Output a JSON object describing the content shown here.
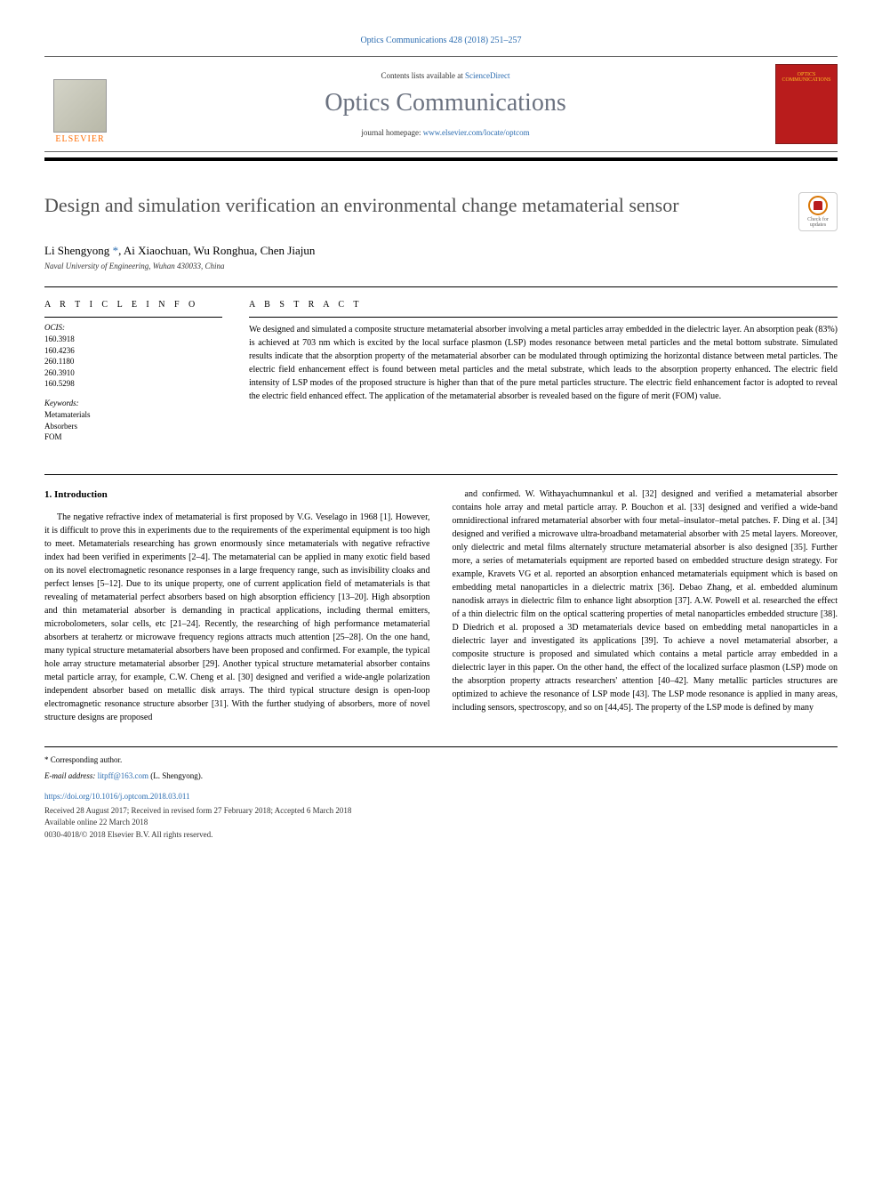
{
  "header": {
    "citation": "Optics Communications 428 (2018) 251–257",
    "contents_prefix": "Contents lists available at ",
    "contents_link": "ScienceDirect",
    "journal_name": "Optics Communications",
    "homepage_prefix": "journal homepage: ",
    "homepage_link": "www.elsevier.com/locate/optcom",
    "publisher": "ELSEVIER",
    "cover_text": "OPTICS COMMUNICATIONS"
  },
  "check_updates": {
    "label": "Check for updates"
  },
  "article": {
    "title": "Design and simulation verification an environmental change metamaterial sensor",
    "authors": "Li Shengyong *, Ai Xiaochuan, Wu Ronghua, Chen Jiajun",
    "affiliation": "Naval University of Engineering, Wuhan 430033, China"
  },
  "info": {
    "heading": "A R T I C L E   I N F O",
    "ocis_label": "OCIS:",
    "ocis": [
      "160.3918",
      "160.4236",
      "260.1180",
      "260.3910",
      "160.5298"
    ],
    "keywords_label": "Keywords:",
    "keywords": [
      "Metamaterials",
      "Absorbers",
      "FOM"
    ]
  },
  "abstract": {
    "heading": "A B S T R A C T",
    "text": "We designed and simulated a composite structure metamaterial absorber involving a metal particles array embedded in the dielectric layer. An absorption peak (83%) is achieved at 703 nm which is excited by the local surface plasmon (LSP) modes resonance between metal particles and the metal bottom substrate. Simulated results indicate that the absorption property of the metamaterial absorber can be modulated through optimizing the horizontal distance between metal particles. The electric field enhancement effect is found between metal particles and the metal substrate, which leads to the absorption property enhanced. The electric field intensity of LSP modes of the proposed structure is higher than that of the pure metal particles structure. The electric field enhancement factor is adopted to reveal the electric field enhanced effect. The application of the metamaterial absorber is revealed based on the figure of merit (FOM) value."
  },
  "body": {
    "section_1_heading": "1. Introduction",
    "col1_text": "The negative refractive index of metamaterial is first proposed by V.G. Veselago in 1968 [1]. However, it is difficult to prove this in experiments due to the requirements of the experimental equipment is too high to meet. Metamaterials researching has grown enormously since metamaterials with negative refractive index had been verified in experiments [2–4]. The metamaterial can be applied in many exotic field based on its novel electromagnetic resonance responses in a large frequency range, such as invisibility cloaks and perfect lenses [5–12]. Due to its unique property, one of current application field of metamaterials is that revealing of metamaterial perfect absorbers based on high absorption efficiency [13–20]. High absorption and thin metamaterial absorber is demanding in practical applications, including thermal emitters, microbolometers, solar cells, etc [21–24]. Recently, the researching of high performance metamaterial absorbers at terahertz or microwave frequency regions attracts much attention [25–28]. On the one hand, many typical structure metamaterial absorbers have been proposed and confirmed. For example, the typical hole array structure metamaterial absorber [29]. Another typical structure metamaterial absorber contains metal particle array, for example, C.W. Cheng et al. [30] designed and verified a wide-angle polarization independent absorber based on metallic disk arrays. The third typical structure design is open-loop electromagnetic resonance structure absorber [31]. With the further studying of absorbers, more of novel structure designs are proposed",
    "col2_text": "and confirmed. W. Withayachumnankul et al. [32] designed and verified a metamaterial absorber contains hole array and metal particle array. P. Bouchon et al. [33] designed and verified a wide-band omnidirectional infrared metamaterial absorber with four metal–insulator–metal patches. F. Ding et al. [34] designed and verified a microwave ultra-broadband metamaterial absorber with 25 metal layers. Moreover, only dielectric and metal films alternately structure metamaterial absorber is also designed [35]. Further more, a series of metamaterials equipment are reported based on embedded structure design strategy. For example, Kravets VG et al. reported an absorption enhanced metamaterials equipment which is based on embedding metal nanoparticles in a dielectric matrix [36]. Debao Zhang, et al. embedded aluminum nanodisk arrays in dielectric film to enhance light absorption [37]. A.W. Powell et al. researched the effect of a thin dielectric film on the optical scattering properties of metal nanoparticles embedded structure [38]. D Diedrich et al. proposed a 3D metamaterials device based on embedding metal nanoparticles in a dielectric layer and investigated its applications [39]. To achieve a novel metamaterial absorber, a composite structure is proposed and simulated which contains a metal particle array embedded in a dielectric layer in this paper. On the other hand, the effect of the localized surface plasmon (LSP) mode on the absorption property attracts researchers' attention [40–42]. Many metallic particles structures are optimized to achieve the resonance of LSP mode [43]. The LSP mode resonance is applied in many areas, including sensors, spectroscopy, and so on [44,45]. The property of the LSP mode is defined by many"
  },
  "footer": {
    "corresponding": "* Corresponding author.",
    "email_label": "E-mail address: ",
    "email": "litpff@163.com",
    "email_suffix": " (L. Shengyong).",
    "doi": "https://doi.org/10.1016/j.optcom.2018.03.011",
    "dates": "Received 28 August 2017; Received in revised form 27 February 2018; Accepted 6 March 2018",
    "online": "Available online 22 March 2018",
    "copyright": "0030-4018/© 2018 Elsevier B.V. All rights reserved."
  },
  "colors": {
    "link": "#2b6cb0",
    "publisher_orange": "#ff6b00",
    "cover_red": "#b91c1c",
    "title_gray": "#505050"
  }
}
